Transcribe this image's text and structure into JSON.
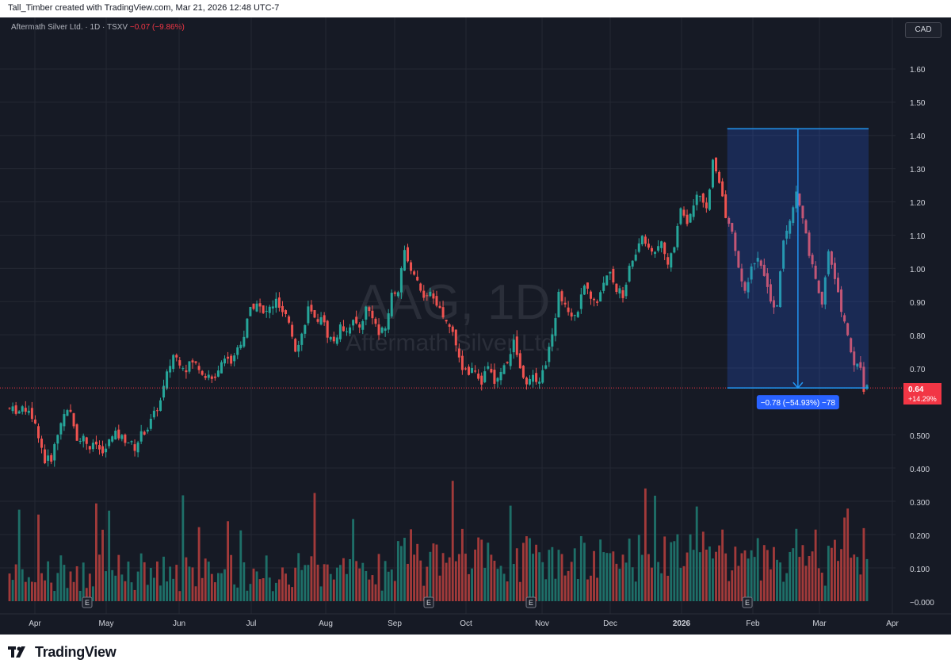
{
  "header": {
    "credit": "Tall_Timber created with TradingView.com, Mar 21, 2026 12:48 UTC-7"
  },
  "legend": {
    "symbol": "Aftermath Silver Ltd. · 1D · TSXV",
    "change": "−0.07 (−9.86%)"
  },
  "currency": "CAD",
  "watermark": {
    "ticker": "AAG, 1D",
    "name": "Aftermath Silver Ltd."
  },
  "measure": {
    "label": "−0.78 (−54.93%) −78"
  },
  "price_badge": {
    "price": "0.64",
    "pct": "+14.29%"
  },
  "events": [
    "E",
    "E",
    "E",
    "E"
  ],
  "footer": {
    "brand": "TradingView"
  },
  "colors": {
    "up": "#26a69a",
    "down": "#ef5350",
    "bg": "#161a25",
    "measure": "#2962ff"
  },
  "chart_data": {
    "type": "candlestick",
    "x_ticks": [
      "Apr",
      "May",
      "Jun",
      "Jul",
      "Aug",
      "Sep",
      "Oct",
      "Nov",
      "Dec",
      "2026",
      "Feb",
      "Mar",
      "Apr"
    ],
    "y_ticks": [
      "1.60",
      "1.50",
      "1.40",
      "1.30",
      "1.20",
      "1.10",
      "1.00",
      "0.90",
      "0.80",
      "0.70",
      "0.500",
      "0.400",
      "0.300",
      "0.200",
      "0.100",
      "−0.000"
    ],
    "ylim": [
      0.0,
      1.6
    ],
    "price_path": [
      [
        0,
        0.58
      ],
      [
        4,
        0.57
      ],
      [
        7,
        0.58
      ],
      [
        10,
        0.5
      ],
      [
        12,
        0.42
      ],
      [
        14,
        0.43
      ],
      [
        16,
        0.5
      ],
      [
        18,
        0.57
      ],
      [
        20,
        0.56
      ],
      [
        22,
        0.49
      ],
      [
        24,
        0.49
      ],
      [
        26,
        0.46
      ],
      [
        28,
        0.47
      ],
      [
        30,
        0.44
      ],
      [
        32,
        0.48
      ],
      [
        34,
        0.5
      ],
      [
        36,
        0.49
      ],
      [
        38,
        0.48
      ],
      [
        40,
        0.46
      ],
      [
        42,
        0.5
      ],
      [
        44,
        0.52
      ],
      [
        46,
        0.56
      ],
      [
        48,
        0.6
      ],
      [
        50,
        0.68
      ],
      [
        52,
        0.74
      ],
      [
        54,
        0.72
      ],
      [
        56,
        0.7
      ],
      [
        58,
        0.72
      ],
      [
        60,
        0.7
      ],
      [
        62,
        0.68
      ],
      [
        64,
        0.66
      ],
      [
        66,
        0.7
      ],
      [
        68,
        0.74
      ],
      [
        70,
        0.72
      ],
      [
        72,
        0.76
      ],
      [
        74,
        0.8
      ],
      [
        76,
        0.88
      ],
      [
        78,
        0.9
      ],
      [
        80,
        0.86
      ],
      [
        82,
        0.88
      ],
      [
        84,
        0.9
      ],
      [
        86,
        0.86
      ],
      [
        88,
        0.84
      ],
      [
        90,
        0.76
      ],
      [
        92,
        0.8
      ],
      [
        94,
        0.88
      ],
      [
        96,
        0.84
      ],
      [
        98,
        0.86
      ],
      [
        100,
        0.8
      ],
      [
        102,
        0.78
      ],
      [
        104,
        0.82
      ],
      [
        106,
        0.82
      ],
      [
        108,
        0.84
      ],
      [
        110,
        0.82
      ],
      [
        112,
        0.88
      ],
      [
        114,
        0.86
      ],
      [
        116,
        0.8
      ],
      [
        118,
        0.82
      ],
      [
        120,
        0.92
      ],
      [
        122,
        0.94
      ],
      [
        124,
        1.05
      ],
      [
        126,
        1.0
      ],
      [
        128,
        0.96
      ],
      [
        130,
        0.9
      ],
      [
        132,
        0.92
      ],
      [
        134,
        0.88
      ],
      [
        136,
        0.86
      ],
      [
        138,
        0.82
      ],
      [
        140,
        0.78
      ],
      [
        142,
        0.7
      ],
      [
        144,
        0.68
      ],
      [
        146,
        0.7
      ],
      [
        148,
        0.66
      ],
      [
        150,
        0.7
      ],
      [
        152,
        0.66
      ],
      [
        154,
        0.68
      ],
      [
        156,
        0.72
      ],
      [
        158,
        0.78
      ],
      [
        160,
        0.7
      ],
      [
        162,
        0.66
      ],
      [
        164,
        0.68
      ],
      [
        166,
        0.66
      ],
      [
        168,
        0.72
      ],
      [
        170,
        0.8
      ],
      [
        172,
        0.92
      ],
      [
        174,
        0.9
      ],
      [
        176,
        0.86
      ],
      [
        178,
        0.88
      ],
      [
        180,
        0.94
      ],
      [
        182,
        0.92
      ],
      [
        184,
        0.9
      ],
      [
        186,
        0.96
      ],
      [
        188,
        1.0
      ],
      [
        190,
        0.94
      ],
      [
        192,
        0.92
      ],
      [
        194,
        1.0
      ],
      [
        196,
        1.04
      ],
      [
        198,
        1.1
      ],
      [
        200,
        1.06
      ],
      [
        202,
        1.04
      ],
      [
        204,
        1.08
      ],
      [
        206,
        1.02
      ],
      [
        208,
        1.06
      ],
      [
        210,
        1.18
      ],
      [
        212,
        1.14
      ],
      [
        214,
        1.2
      ],
      [
        216,
        1.22
      ],
      [
        218,
        1.18
      ],
      [
        220,
        1.32
      ],
      [
        222,
        1.25
      ],
      [
        224,
        1.16
      ],
      [
        226,
        1.1
      ],
      [
        228,
        1.0
      ],
      [
        230,
        0.92
      ],
      [
        232,
        1.0
      ],
      [
        234,
        1.04
      ],
      [
        236,
        0.98
      ],
      [
        238,
        0.9
      ],
      [
        240,
        0.88
      ],
      [
        242,
        1.08
      ],
      [
        244,
        1.14
      ],
      [
        246,
        1.22
      ],
      [
        248,
        1.16
      ],
      [
        250,
        1.04
      ],
      [
        252,
        0.96
      ],
      [
        254,
        0.9
      ],
      [
        256,
        1.06
      ],
      [
        258,
        0.96
      ],
      [
        260,
        0.88
      ],
      [
        262,
        0.8
      ],
      [
        264,
        0.72
      ],
      [
        266,
        0.71
      ],
      [
        267,
        0.64
      ]
    ],
    "measure_range": {
      "from": 1.42,
      "to": 0.64,
      "start_day": 224,
      "end_day": 268
    },
    "last_price": 0.64,
    "volume_max": 0.4
  }
}
